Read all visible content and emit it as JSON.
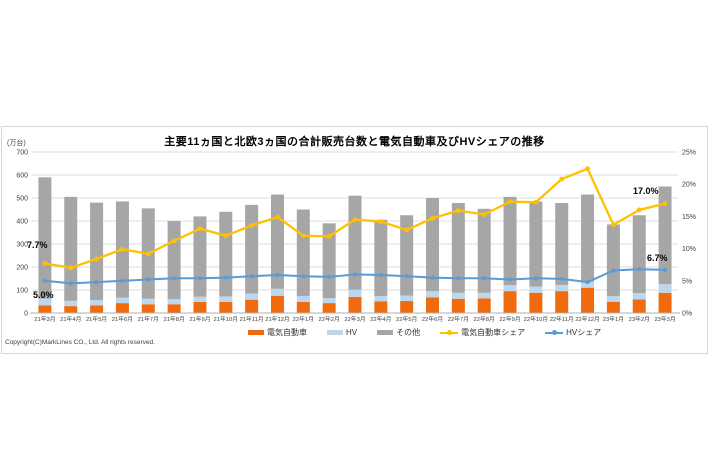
{
  "chart": {
    "unit_label": "(万台)",
    "copyright": "Copyright(C)MarkLines CO., Ltd. All rights reserved.",
    "annotations": [
      {
        "id": "ev-share-start",
        "text": "7.7%"
      },
      {
        "id": "hv-share-start",
        "text": "5.0%"
      },
      {
        "id": "ev-share-end",
        "text": "17.0%"
      },
      {
        "id": "hv-share-end",
        "text": "6.7%"
      }
    ]
  },
  "chart_data": {
    "type": "bar",
    "subtype": "stacked-column-with-line-overlay",
    "title": "主要11ヵ国と北欧3ヵ国の合計販売台数と電気自動車及びHVシェアの推移",
    "categories": [
      "21年3月",
      "21年4月",
      "21年5月",
      "21年6月",
      "21年7月",
      "21年8月",
      "21年9月",
      "21年10月",
      "21年11月",
      "21年12月",
      "22年1月",
      "22年2月",
      "22年3月",
      "22年4月",
      "22年5月",
      "22年6月",
      "22年7月",
      "22年8月",
      "22年9月",
      "22年10月",
      "22年11月",
      "22年12月",
      "23年1月",
      "23年2月",
      "23年3月"
    ],
    "series": [
      {
        "key": "ev",
        "name": "電気自動車",
        "type": "bar",
        "stack": "sales",
        "axis": "left",
        "color": "#f06b0e",
        "values": [
          33,
          30,
          33,
          43,
          38,
          38,
          48,
          48,
          58,
          75,
          48,
          43,
          70,
          50,
          52,
          68,
          62,
          64,
          95,
          88,
          95,
          110,
          49,
          59,
          88
        ]
      },
      {
        "key": "hv",
        "name": "HV",
        "type": "bar",
        "stack": "sales",
        "axis": "left",
        "color": "#bdd7ee",
        "values": [
          30,
          23,
          23,
          24,
          24,
          22,
          23,
          24,
          27,
          30,
          26,
          22,
          31,
          24,
          24,
          27,
          26,
          24,
          26,
          27,
          27,
          26,
          25,
          28,
          37
        ]
      },
      {
        "key": "other",
        "name": "その他",
        "type": "bar",
        "stack": "sales",
        "axis": "left",
        "color": "#a6a6a6",
        "values": [
          527,
          452,
          424,
          418,
          393,
          340,
          349,
          368,
          385,
          410,
          376,
          325,
          409,
          331,
          349,
          405,
          390,
          365,
          384,
          370,
          356,
          379,
          311,
          338,
          425
        ]
      },
      {
        "key": "ev_share",
        "name": "電気自動車シェア",
        "type": "line",
        "axis": "right",
        "color": "#ffc000",
        "values": [
          7.7,
          7.0,
          8.4,
          9.9,
          9.2,
          11.2,
          13.1,
          12.0,
          13.6,
          14.9,
          12.0,
          11.9,
          14.5,
          14.2,
          12.9,
          14.7,
          15.9,
          15.3,
          17.3,
          17.2,
          20.8,
          22.4,
          13.7,
          16.0,
          17.0
        ]
      },
      {
        "key": "hv_share",
        "name": "HVシェア",
        "type": "line",
        "axis": "right",
        "color": "#5b9bd5",
        "values": [
          5.0,
          4.6,
          4.8,
          5.0,
          5.2,
          5.4,
          5.4,
          5.5,
          5.7,
          5.9,
          5.7,
          5.6,
          6.0,
          5.9,
          5.7,
          5.5,
          5.4,
          5.4,
          5.2,
          5.4,
          5.3,
          4.8,
          6.6,
          6.8,
          6.7
        ]
      }
    ],
    "axes": {
      "left": {
        "label": "(万台)",
        "min": 0,
        "max": 700,
        "ticks": [
          "0",
          "100",
          "200",
          "300",
          "400",
          "500",
          "600",
          "700"
        ]
      },
      "right": {
        "min": 0,
        "max": 25,
        "ticks": [
          "0%",
          "5%",
          "10%",
          "15%",
          "20%",
          "25%"
        ]
      }
    },
    "grid": true,
    "legend_position": "bottom"
  }
}
